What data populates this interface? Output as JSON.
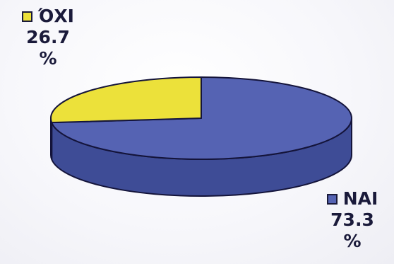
{
  "chart_data": {
    "type": "pie",
    "style": "3d",
    "slices": [
      {
        "label": "NAI",
        "value": 73.3,
        "unit": "%",
        "color": "#5563b3",
        "side_color": "#3e4c96"
      },
      {
        "label": "ΌΧΙ",
        "value": 26.7,
        "unit": "%",
        "color": "#ece13a",
        "side_color": "#c9bd22"
      }
    ],
    "title": "",
    "legend": "beside slices"
  }
}
